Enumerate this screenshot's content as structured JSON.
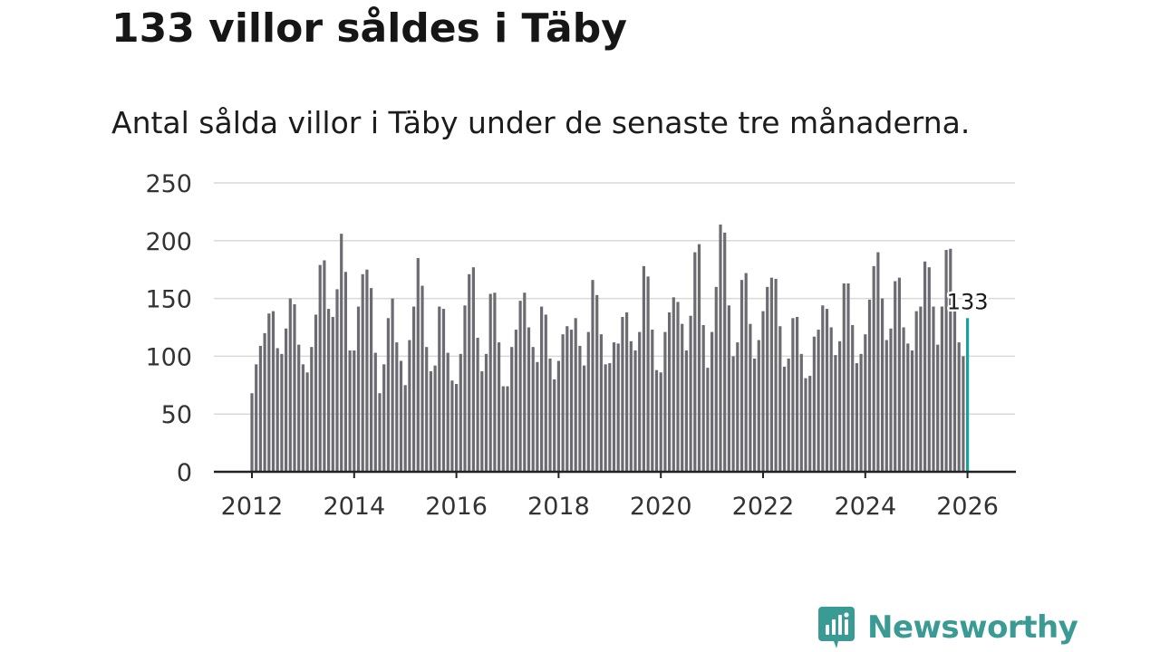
{
  "header": {
    "title": "133 villor såldes i Täby",
    "subtitle": "Antal sålda villor i Täby under de senaste tre månaderna."
  },
  "brand": {
    "name": "Newsworthy",
    "color": "#3a9a94"
  },
  "colors": {
    "bar": "#6d6b72",
    "highlight": "#1aa19b",
    "grid": "#d9d9d9",
    "axis": "#222222"
  },
  "chart_data": {
    "type": "bar",
    "title": "133 villor såldes i Täby",
    "subtitle": "Antal sålda villor i Täby under de senaste tre månaderna.",
    "xlabel": "",
    "ylabel": "",
    "ylim": [
      0,
      250
    ],
    "yticks": [
      "0",
      "50",
      "100",
      "150",
      "200",
      "250"
    ],
    "xticks": [
      "2012",
      "2014",
      "2016",
      "2018",
      "2020",
      "2022",
      "2024",
      "2026"
    ],
    "grid": true,
    "start": "2012-01",
    "frequency": "monthly",
    "highlight_label": "133",
    "values": [
      68,
      93,
      109,
      120,
      137,
      139,
      107,
      102,
      124,
      150,
      145,
      110,
      93,
      86,
      108,
      136,
      179,
      183,
      141,
      134,
      158,
      206,
      173,
      105,
      105,
      143,
      171,
      175,
      159,
      103,
      68,
      93,
      133,
      150,
      112,
      96,
      75,
      114,
      143,
      185,
      161,
      108,
      87,
      92,
      143,
      141,
      103,
      79,
      76,
      102,
      144,
      171,
      177,
      116,
      87,
      102,
      154,
      155,
      112,
      74,
      74,
      108,
      123,
      148,
      155,
      125,
      108,
      95,
      143,
      136,
      98,
      80,
      96,
      119,
      126,
      123,
      133,
      109,
      92,
      121,
      166,
      153,
      119,
      93,
      94,
      112,
      111,
      134,
      138,
      113,
      105,
      121,
      178,
      169,
      123,
      88,
      86,
      121,
      138,
      151,
      147,
      128,
      105,
      135,
      190,
      197,
      127,
      90,
      121,
      160,
      214,
      207,
      144,
      100,
      112,
      166,
      172,
      128,
      98,
      114,
      139,
      160,
      168,
      167,
      126,
      91,
      98,
      133,
      134,
      102,
      81,
      83,
      117,
      123,
      144,
      141,
      125,
      101,
      113,
      163,
      163,
      127,
      94,
      102,
      119,
      149,
      178,
      190,
      150,
      114,
      124,
      165,
      168,
      125,
      111,
      105,
      139,
      143,
      182,
      177,
      143,
      110,
      143,
      192,
      193,
      139,
      112,
      100,
      133
    ]
  }
}
